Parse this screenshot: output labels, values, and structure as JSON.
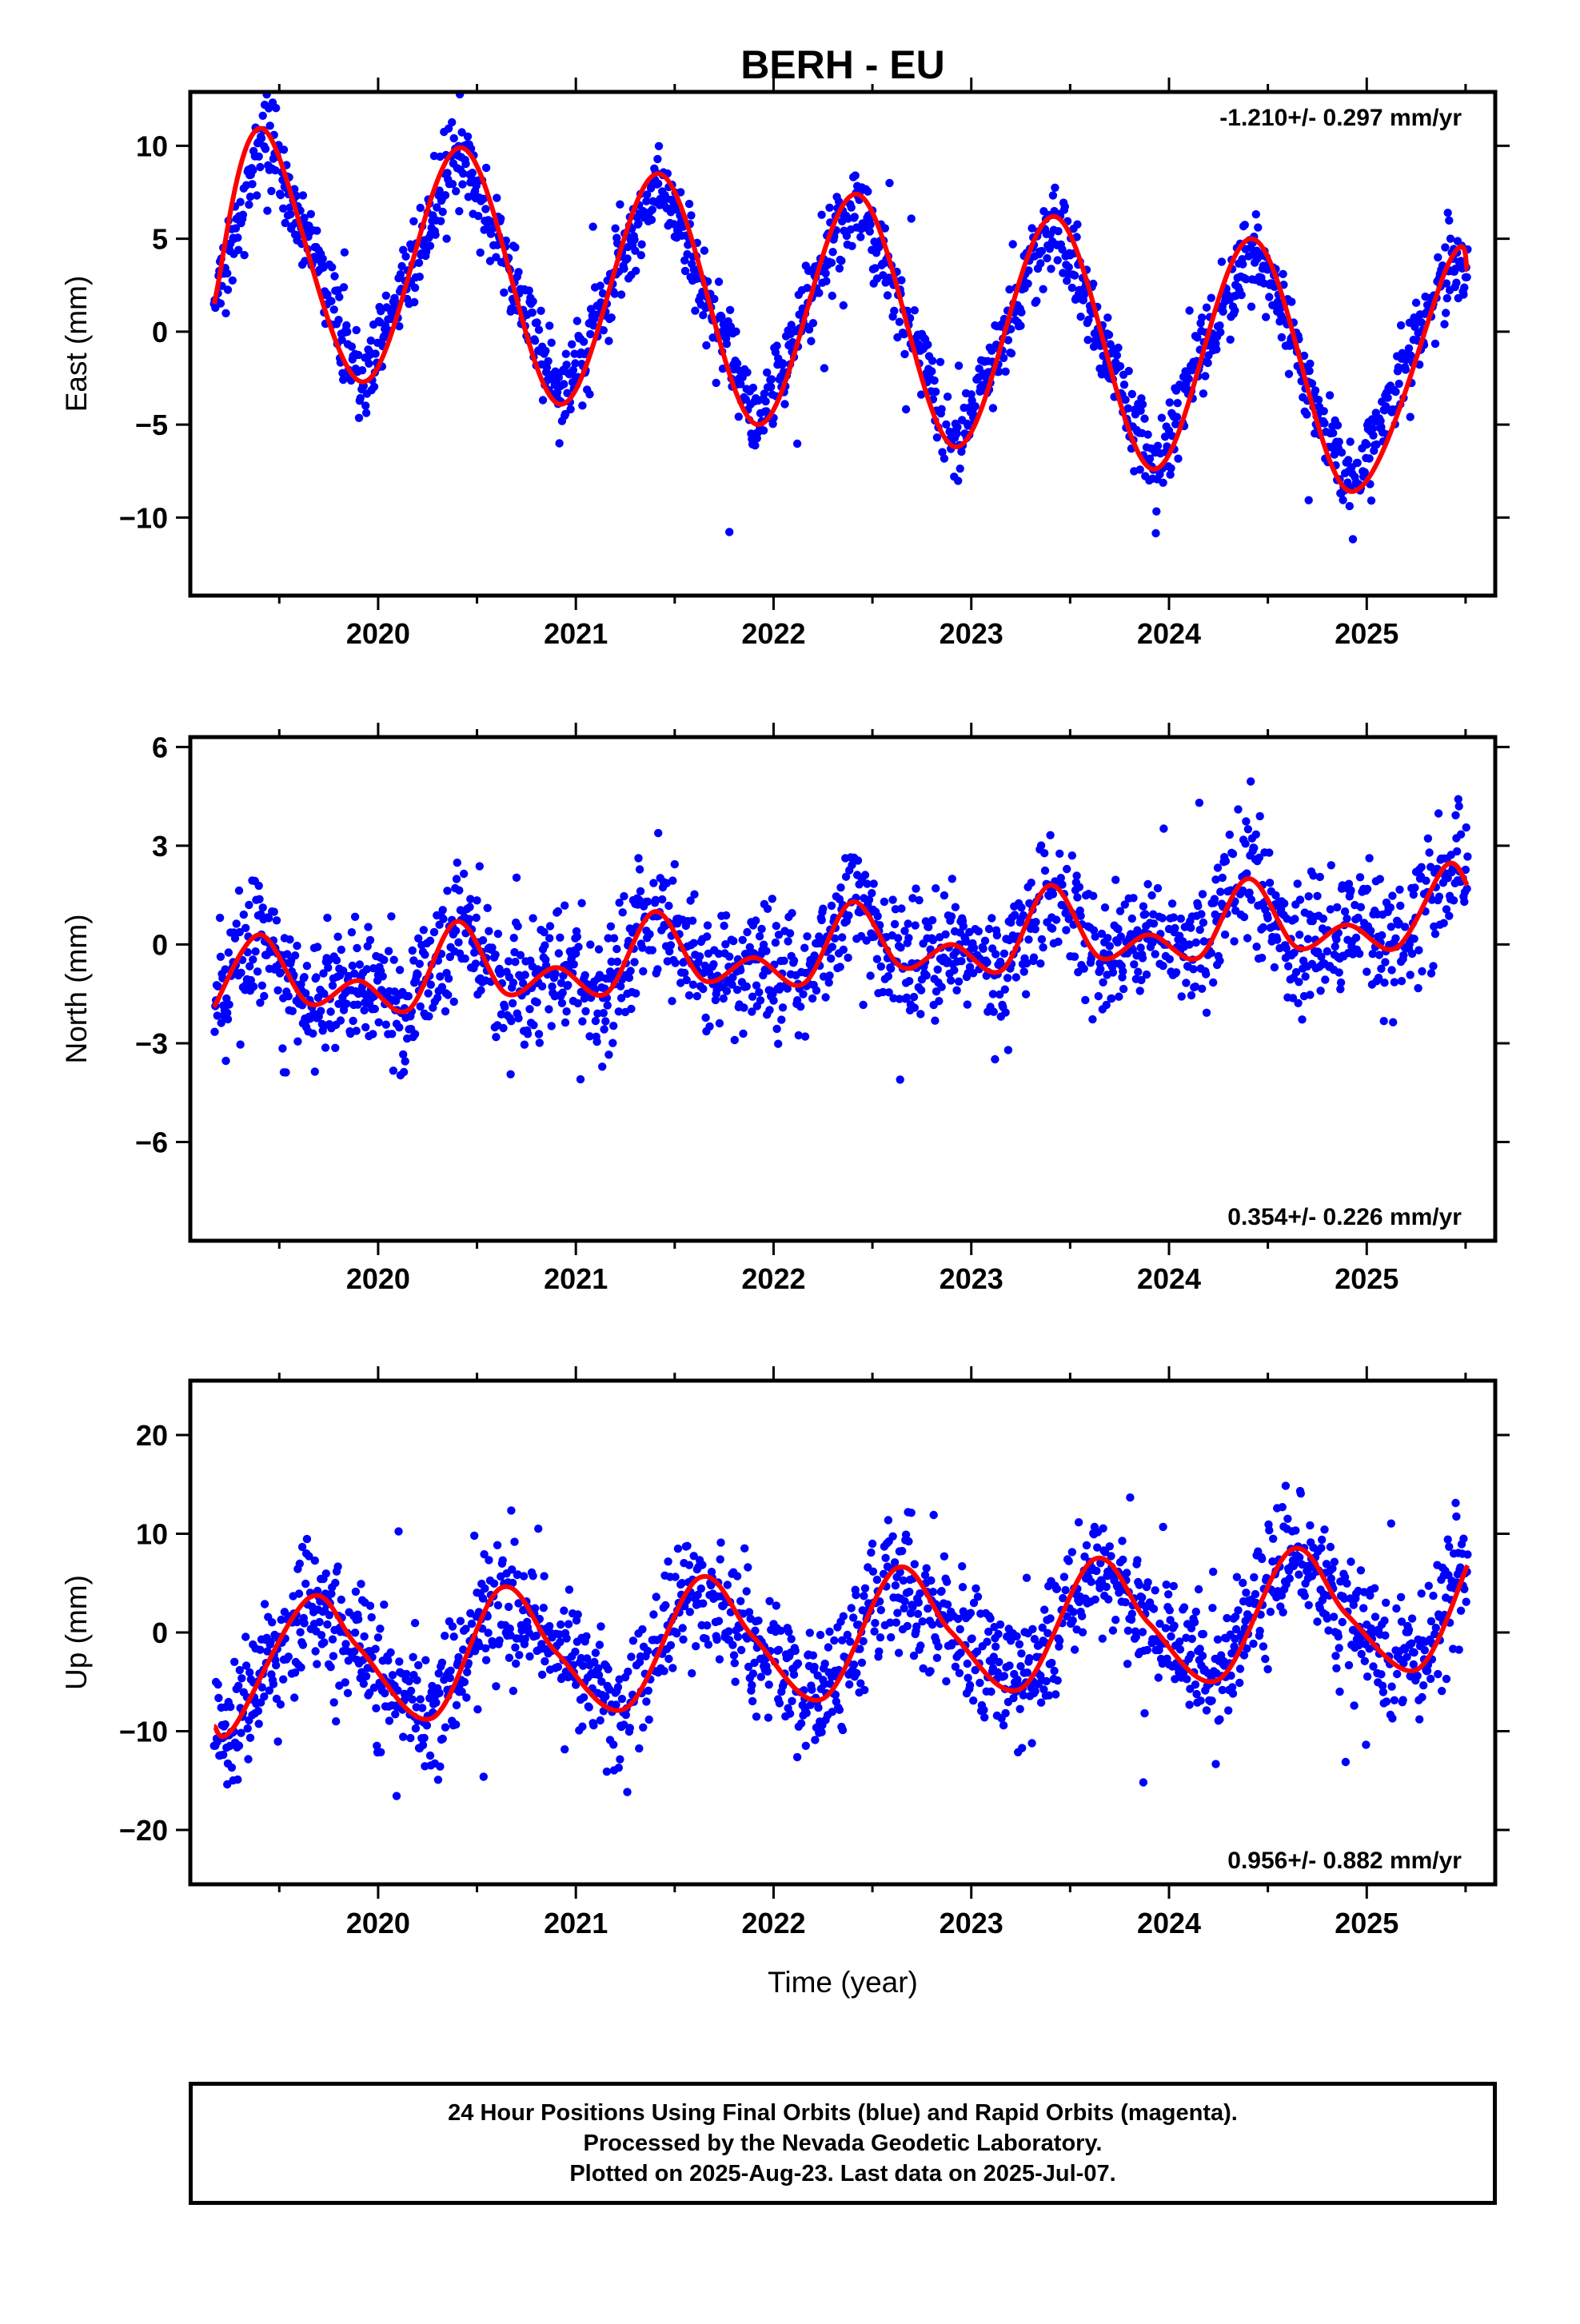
{
  "page_title": "BERH - EU",
  "footer": {
    "line1": "24 Hour Positions Using Final Orbits (blue) and Rapid Orbits (magenta).",
    "line2": "Processed by the Nevada Geodetic Laboratory.",
    "line3": "Plotted on 2025-Aug-23. Last data on 2025-Jul-07."
  },
  "colors": {
    "data_points": "#0000ff",
    "model_fit": "#ff0000",
    "frame": "#000000"
  },
  "chart_data": [
    {
      "type": "scatter",
      "component": "East",
      "ylabel": "East (mm)",
      "xlabel": "",
      "rate_label": "-1.210+/- 0.297 mm/yr",
      "rate_position": "top-right",
      "xlim": [
        2019.05,
        2025.65
      ],
      "ylim": [
        -14.2,
        12.9
      ],
      "xticks": [
        2020,
        2021,
        2022,
        2023,
        2024,
        2025
      ],
      "xtick_labels": [
        "2020",
        "2021",
        "2022",
        "2023",
        "2024",
        "2025"
      ],
      "yticks": [
        10,
        5,
        0,
        -5,
        -10
      ],
      "ytick_labels": [
        "10",
        "5",
        "0",
        "−5",
        "−10"
      ],
      "grid": false,
      "start_year": 2019.17,
      "end_year": 2025.51,
      "trend_mm_per_yr": -1.21,
      "series": [
        {
          "name": "Final Orbits",
          "color": "#0000ff",
          "kind": "points"
        },
        {
          "name": "model fit",
          "color": "#ff0000",
          "kind": "line",
          "x": [
            2019.17,
            2019.42,
            2019.92,
            2020.42,
            2020.92,
            2021.42,
            2021.92,
            2022.42,
            2022.92,
            2023.42,
            2023.92,
            2024.42,
            2024.92,
            2025.42,
            2025.51
          ],
          "y": [
            1.5,
            10.9,
            -2.7,
            9.9,
            -3.9,
            8.5,
            -5.0,
            7.4,
            -6.2,
            6.2,
            -7.4,
            5.0,
            -8.6,
            3.8,
            3.3
          ]
        }
      ]
    },
    {
      "type": "scatter",
      "component": "North",
      "ylabel": "North (mm)",
      "xlabel": "",
      "rate_label": "0.354+/- 0.226 mm/yr",
      "rate_position": "bottom-right",
      "xlim": [
        2019.05,
        2025.65
      ],
      "ylim": [
        -9.0,
        6.3
      ],
      "xticks": [
        2020,
        2021,
        2022,
        2023,
        2024,
        2025
      ],
      "xtick_labels": [
        "2020",
        "2021",
        "2022",
        "2023",
        "2024",
        "2025"
      ],
      "yticks": [
        6,
        3,
        0,
        -3,
        -6
      ],
      "ytick_labels": [
        "6",
        "3",
        "0",
        "−3",
        "−6"
      ],
      "grid": false,
      "start_year": 2019.17,
      "end_year": 2025.51,
      "trend_mm_per_yr": 0.354,
      "series": [
        {
          "name": "Final Orbits",
          "color": "#0000ff",
          "kind": "points"
        },
        {
          "name": "model fit",
          "color": "#ff0000",
          "kind": "line",
          "x": [
            2019.17,
            2019.4,
            2019.65,
            2019.9,
            2020.15,
            2020.4,
            2020.65,
            2020.9,
            2021.15,
            2021.4,
            2021.65,
            2021.9,
            2022.15,
            2022.4,
            2022.65,
            2022.9,
            2023.15,
            2023.4,
            2023.65,
            2023.9,
            2024.15,
            2024.4,
            2024.65,
            2024.9,
            2025.15,
            2025.4,
            2025.51
          ],
          "y": [
            -1.9,
            0.3,
            -1.8,
            -1.1,
            -2.0,
            0.7,
            -1.5,
            -0.7,
            -1.5,
            1.0,
            -1.1,
            -0.4,
            -1.2,
            1.3,
            -0.7,
            0.0,
            -0.8,
            1.8,
            -0.4,
            0.3,
            -0.4,
            2.0,
            -0.1,
            0.6,
            -0.1,
            2.4,
            1.8
          ]
        }
      ]
    },
    {
      "type": "scatter",
      "component": "Up",
      "ylabel": "Up (mm)",
      "xlabel": "Time (year)",
      "rate_label": "0.956+/- 0.882 mm/yr",
      "rate_position": "bottom-right",
      "xlim": [
        2019.05,
        2025.65
      ],
      "ylim": [
        -25.5,
        25.5
      ],
      "xticks": [
        2020,
        2021,
        2022,
        2023,
        2024,
        2025
      ],
      "xtick_labels": [
        "2020",
        "2021",
        "2022",
        "2023",
        "2024",
        "2025"
      ],
      "yticks": [
        20,
        10,
        0,
        -10,
        -20
      ],
      "ytick_labels": [
        "20",
        "10",
        "0",
        "−10",
        "−20"
      ],
      "grid": false,
      "start_year": 2019.17,
      "end_year": 2025.51,
      "trend_mm_per_yr": 0.956,
      "series": [
        {
          "name": "Final Orbits",
          "color": "#0000ff",
          "kind": "points"
        },
        {
          "name": "model fit",
          "color": "#ff0000",
          "kind": "line",
          "x": [
            2019.17,
            2019.27,
            2019.65,
            2019.9,
            2020.27,
            2020.62,
            2020.9,
            2021.25,
            2021.62,
            2021.9,
            2022.25,
            2022.62,
            2022.9,
            2023.25,
            2023.62,
            2023.9,
            2024.25,
            2024.62,
            2024.9,
            2025.25,
            2025.51
          ],
          "y": [
            -9.5,
            -9.6,
            3.5,
            -1.5,
            -8.7,
            4.5,
            -2.0,
            -7.7,
            5.5,
            -0.5,
            -6.7,
            6.5,
            0.0,
            -5.7,
            7.4,
            0.9,
            -4.8,
            8.4,
            1.8,
            -3.8,
            6.8
          ]
        }
      ]
    }
  ]
}
